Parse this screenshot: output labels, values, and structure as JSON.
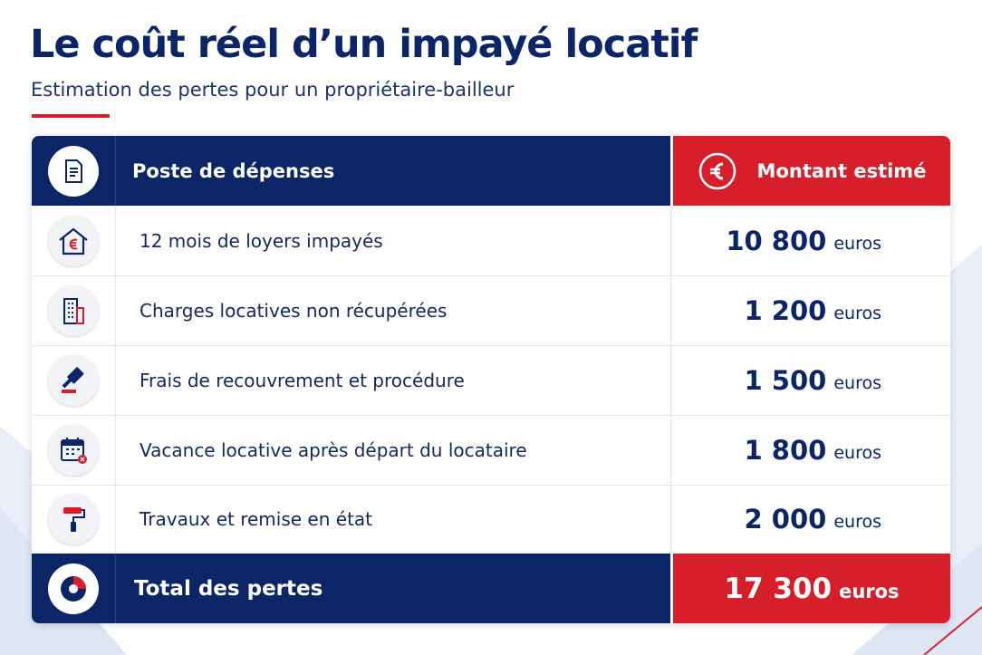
{
  "header": {
    "title": "Le coût réel d’un impayé locatif",
    "subtitle": "Estimation des pertes pour un propriétaire-bailleur"
  },
  "table": {
    "columns": [
      "Poste de dépenses",
      "Montant estimé"
    ],
    "rows": [
      {
        "label": "12 mois de loyers impayés",
        "amount": "10 800",
        "unit": "euros"
      },
      {
        "label": "Charges locatives non récupérées",
        "amount": "1 200",
        "unit": "euros"
      },
      {
        "label": "Frais de recouvrement et procédure",
        "amount": "1 500",
        "unit": "euros"
      },
      {
        "label": "Vacance locative après départ du locataire",
        "amount": "1 800",
        "unit": "euros"
      },
      {
        "label": "Travaux et remise en état",
        "amount": "2 000",
        "unit": "euros"
      }
    ],
    "total": {
      "label": "Total des pertes",
      "amount": "17 300",
      "unit": "euros"
    }
  }
}
